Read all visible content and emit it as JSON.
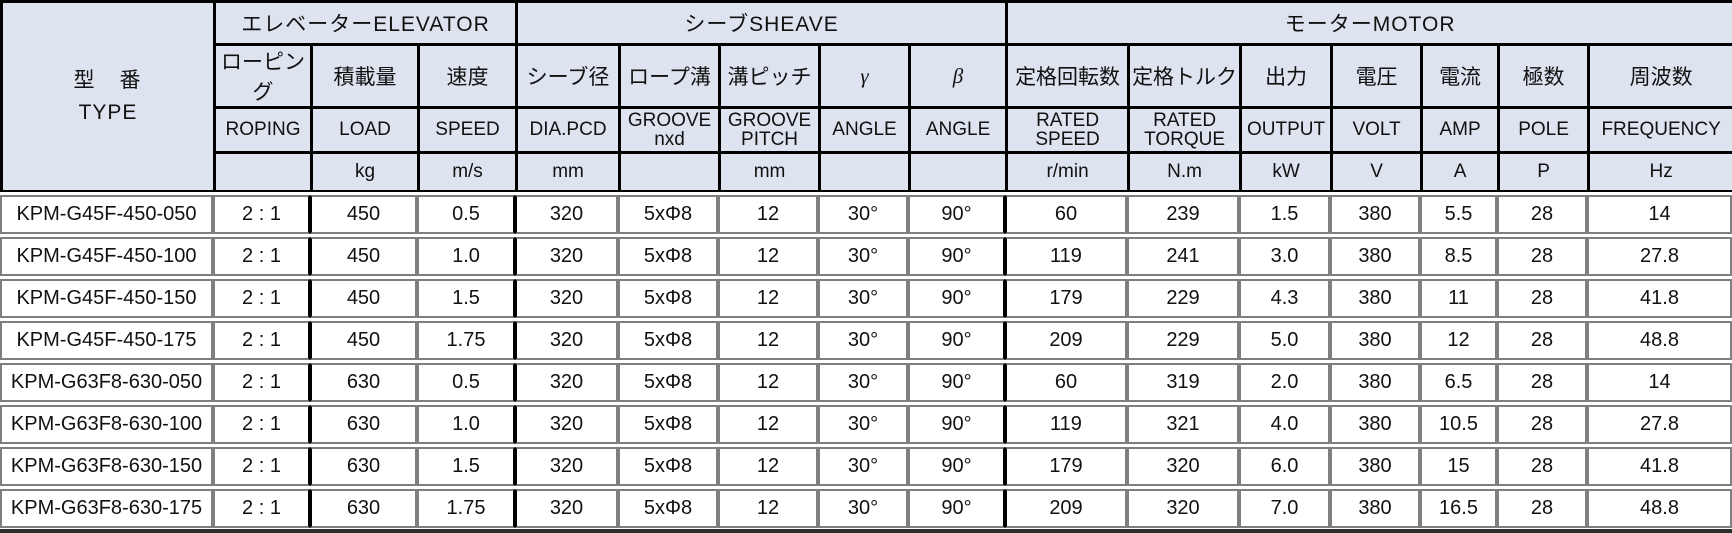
{
  "colors": {
    "header_background": "#dde3ef",
    "header_border": "#000000",
    "data_border": "#7f7f7f",
    "text": "#111111"
  },
  "table": {
    "type_header": {
      "ja": "型　番",
      "en": "TYPE"
    },
    "groups": [
      {
        "label": "エレベーターELEVATOR",
        "span": 3
      },
      {
        "label": "シーブSHEAVE",
        "span": 5
      },
      {
        "label": "モーターMOTOR",
        "span": 7
      }
    ],
    "columns": [
      {
        "ja": "ローピング",
        "en": "ROPING",
        "unit": ""
      },
      {
        "ja": "積載量",
        "en": "LOAD",
        "unit": "kg"
      },
      {
        "ja": "速度",
        "en": "SPEED",
        "unit": "m/s"
      },
      {
        "ja": "シーブ径",
        "en": "DIA.PCD",
        "unit": "mm"
      },
      {
        "ja": "ロープ溝",
        "en": "GROOVE\nnxd",
        "unit": ""
      },
      {
        "ja": "溝ピッチ",
        "en": "GROOVE\nPITCH",
        "unit": "mm"
      },
      {
        "ja": "γ",
        "en": "ANGLE",
        "unit": ""
      },
      {
        "ja": "β",
        "en": "ANGLE",
        "unit": ""
      },
      {
        "ja": "定格回転数",
        "en": "RATED\nSPEED",
        "unit": "r/min"
      },
      {
        "ja": "定格トルク",
        "en": "RATED\nTORQUE",
        "unit": "N.m"
      },
      {
        "ja": "出力",
        "en": "OUTPUT",
        "unit": "kW"
      },
      {
        "ja": "電圧",
        "en": "VOLT",
        "unit": "V"
      },
      {
        "ja": "電流",
        "en": "AMP",
        "unit": "A"
      },
      {
        "ja": "極数",
        "en": "POLE",
        "unit": "P"
      },
      {
        "ja": "周波数",
        "en": "FREQUENCY",
        "unit": "Hz"
      }
    ],
    "rows": [
      [
        "KPM-G45F-450-050",
        "2 : 1",
        "450",
        "0.5",
        "320",
        "5xΦ8",
        "12",
        "30°",
        "90°",
        "60",
        "239",
        "1.5",
        "380",
        "5.5",
        "28",
        "14"
      ],
      [
        "KPM-G45F-450-100",
        "2 : 1",
        "450",
        "1.0",
        "320",
        "5xΦ8",
        "12",
        "30°",
        "90°",
        "119",
        "241",
        "3.0",
        "380",
        "8.5",
        "28",
        "27.8"
      ],
      [
        "KPM-G45F-450-150",
        "2 : 1",
        "450",
        "1.5",
        "320",
        "5xΦ8",
        "12",
        "30°",
        "90°",
        "179",
        "229",
        "4.3",
        "380",
        "11",
        "28",
        "41.8"
      ],
      [
        "KPM-G45F-450-175",
        "2 : 1",
        "450",
        "1.75",
        "320",
        "5xΦ8",
        "12",
        "30°",
        "90°",
        "209",
        "229",
        "5.0",
        "380",
        "12",
        "28",
        "48.8"
      ],
      [
        "KPM-G63F8-630-050",
        "2 : 1",
        "630",
        "0.5",
        "320",
        "5xΦ8",
        "12",
        "30°",
        "90°",
        "60",
        "319",
        "2.0",
        "380",
        "6.5",
        "28",
        "14"
      ],
      [
        "KPM-G63F8-630-100",
        "2 : 1",
        "630",
        "1.0",
        "320",
        "5xΦ8",
        "12",
        "30°",
        "90°",
        "119",
        "321",
        "4.0",
        "380",
        "10.5",
        "28",
        "27.8"
      ],
      [
        "KPM-G63F8-630-150",
        "2 : 1",
        "630",
        "1.5",
        "320",
        "5xΦ8",
        "12",
        "30°",
        "90°",
        "179",
        "320",
        "6.0",
        "380",
        "15",
        "28",
        "41.8"
      ],
      [
        "KPM-G63F8-630-175",
        "2 : 1",
        "630",
        "1.75",
        "320",
        "5xΦ8",
        "12",
        "30°",
        "90°",
        "209",
        "320",
        "7.0",
        "380",
        "16.5",
        "28",
        "48.8"
      ]
    ]
  }
}
